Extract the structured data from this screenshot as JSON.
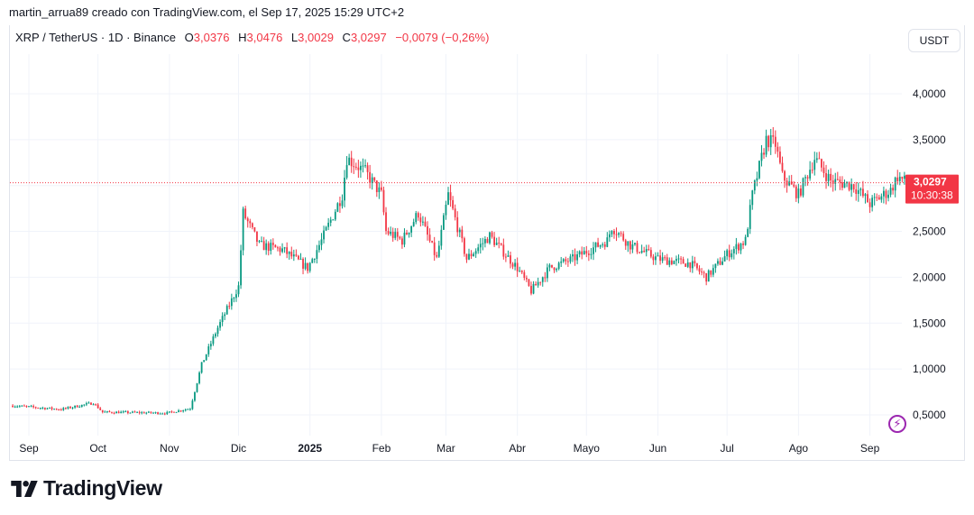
{
  "credit": "martin_arrua89 creado con TradingView.com, el Sep 17, 2025 15:29 UTC+2",
  "legend": {
    "symbol": "XRP / TetherUS · 1D · Binance",
    "o_label": "O",
    "o": "3,0376",
    "h_label": "H",
    "h": "3,0476",
    "l_label": "L",
    "l": "3,0029",
    "c_label": "C",
    "c": "3,0297",
    "change": "−0,0079 (−0,26%)"
  },
  "currency_button": "USDT",
  "last_price": {
    "price": "3,0297",
    "countdown": "10:30:38"
  },
  "brand": "TradingView",
  "colors": {
    "up": "#089981",
    "down": "#f23645",
    "grid": "#f0f3fa",
    "alert": "#9c27b0"
  },
  "chart_data": {
    "type": "candlestick",
    "title": "XRP / TetherUS · 1D · Binance",
    "ylim": [
      0.25,
      4.5
    ],
    "y_ticks": [
      {
        "v": 4.0,
        "label": "4,0000"
      },
      {
        "v": 3.5,
        "label": "3,5000"
      },
      {
        "v": 2.5,
        "label": "2,5000"
      },
      {
        "v": 2.0,
        "label": "2,0000"
      },
      {
        "v": 1.5,
        "label": "1,5000"
      },
      {
        "v": 1.0,
        "label": "1,0000"
      },
      {
        "v": 0.5,
        "label": "0,5000"
      }
    ],
    "x_ticks": [
      {
        "d": "2024-09-01",
        "label": "Sep"
      },
      {
        "d": "2024-10-01",
        "label": "Oct"
      },
      {
        "d": "2024-11-01",
        "label": "Nov"
      },
      {
        "d": "2024-12-01",
        "label": "Dic"
      },
      {
        "d": "2025-01-01",
        "label": "2025",
        "bold": true
      },
      {
        "d": "2025-02-01",
        "label": "Feb"
      },
      {
        "d": "2025-03-01",
        "label": "Mar"
      },
      {
        "d": "2025-04-01",
        "label": "Abr"
      },
      {
        "d": "2025-05-01",
        "label": "Mayo"
      },
      {
        "d": "2025-06-01",
        "label": "Jun"
      },
      {
        "d": "2025-07-01",
        "label": "Jul"
      },
      {
        "d": "2025-08-01",
        "label": "Ago"
      },
      {
        "d": "2025-09-01",
        "label": "Sep"
      }
    ],
    "start_date": "2024-08-25",
    "approx_close_anchors": [
      [
        "2024-08-25",
        0.6
      ],
      [
        "2024-09-15",
        0.56
      ],
      [
        "2024-09-29",
        0.63
      ],
      [
        "2024-10-03",
        0.53
      ],
      [
        "2024-10-31",
        0.52
      ],
      [
        "2024-11-10",
        0.57
      ],
      [
        "2024-11-15",
        1.05
      ],
      [
        "2024-11-22",
        1.45
      ],
      [
        "2024-12-01",
        1.9
      ],
      [
        "2024-12-03",
        2.7
      ],
      [
        "2024-12-10",
        2.35
      ],
      [
        "2024-12-20",
        2.3
      ],
      [
        "2024-12-31",
        2.1
      ],
      [
        "2025-01-06",
        2.4
      ],
      [
        "2025-01-15",
        2.9
      ],
      [
        "2025-01-17",
        3.3
      ],
      [
        "2025-01-25",
        3.15
      ],
      [
        "2025-02-01",
        2.9
      ],
      [
        "2025-02-03",
        2.5
      ],
      [
        "2025-02-10",
        2.4
      ],
      [
        "2025-02-17",
        2.7
      ],
      [
        "2025-02-25",
        2.2
      ],
      [
        "2025-03-02",
        2.9
      ],
      [
        "2025-03-10",
        2.2
      ],
      [
        "2025-03-20",
        2.45
      ],
      [
        "2025-04-01",
        2.1
      ],
      [
        "2025-04-07",
        1.85
      ],
      [
        "2025-04-15",
        2.1
      ],
      [
        "2025-04-25",
        2.2
      ],
      [
        "2025-05-10",
        2.4
      ],
      [
        "2025-05-12",
        2.55
      ],
      [
        "2025-05-20",
        2.35
      ],
      [
        "2025-06-01",
        2.2
      ],
      [
        "2025-06-15",
        2.15
      ],
      [
        "2025-06-22",
        2.0
      ],
      [
        "2025-07-01",
        2.25
      ],
      [
        "2025-07-09",
        2.4
      ],
      [
        "2025-07-12",
        2.9
      ],
      [
        "2025-07-18",
        3.5
      ],
      [
        "2025-07-22",
        3.45
      ],
      [
        "2025-07-25",
        3.1
      ],
      [
        "2025-08-01",
        2.9
      ],
      [
        "2025-08-08",
        3.3
      ],
      [
        "2025-08-15",
        3.05
      ],
      [
        "2025-08-25",
        3.0
      ],
      [
        "2025-09-01",
        2.8
      ],
      [
        "2025-09-10",
        2.95
      ],
      [
        "2025-09-13",
        3.1
      ],
      [
        "2025-09-17",
        3.03
      ]
    ],
    "last_candle": {
      "date": "2025-09-17",
      "open": 3.0376,
      "high": 3.0476,
      "low": 3.0029,
      "close": 3.0297
    },
    "last_price_line": 3.0297
  }
}
